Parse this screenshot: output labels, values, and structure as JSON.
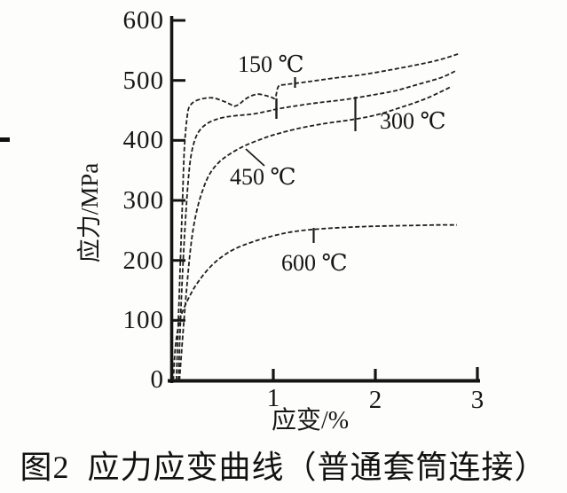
{
  "caption": "图2  应力应变曲线（普通套筒连接）",
  "chart_data": {
    "type": "line",
    "title": "图2 应力应变曲线（普通套筒连接）",
    "xlabel": "应变/%",
    "ylabel": "应力/MPa",
    "xlim": [
      0,
      3
    ],
    "ylim": [
      0,
      600
    ],
    "x_tick_labels": [
      "1",
      "2",
      "3"
    ],
    "y_tick_labels": [
      "600",
      "500",
      "400",
      "300",
      "200",
      "100",
      "0"
    ],
    "grid": false,
    "legend_position": "inline curve labels",
    "line_color": "#1f1f1f",
    "series": [
      {
        "name": "150 ℃",
        "points": [
          [
            0.05,
            0
          ],
          [
            0.08,
            150
          ],
          [
            0.11,
            300
          ],
          [
            0.13,
            390
          ],
          [
            0.16,
            445
          ],
          [
            0.19,
            459
          ],
          [
            0.24,
            466
          ],
          [
            0.32,
            470
          ],
          [
            0.4,
            471
          ],
          [
            0.47,
            468
          ],
          [
            0.53,
            464
          ],
          [
            0.58,
            460
          ],
          [
            0.62,
            457
          ],
          [
            0.67,
            461
          ],
          [
            0.72,
            468
          ],
          [
            0.78,
            474
          ],
          [
            0.85,
            477
          ],
          [
            0.92,
            475
          ],
          [
            0.98,
            472
          ],
          [
            1.02,
            471
          ],
          [
            1.05,
            490
          ],
          [
            1.12,
            493
          ],
          [
            1.35,
            498
          ],
          [
            1.6,
            504
          ],
          [
            1.85,
            509
          ],
          [
            2.1,
            516
          ],
          [
            2.35,
            524
          ],
          [
            2.6,
            533
          ],
          [
            2.83,
            545
          ]
        ]
      },
      {
        "name": "300 ℃",
        "points": [
          [
            0.07,
            0
          ],
          [
            0.1,
            140
          ],
          [
            0.13,
            240
          ],
          [
            0.16,
            320
          ],
          [
            0.19,
            370
          ],
          [
            0.23,
            400
          ],
          [
            0.28,
            417
          ],
          [
            0.36,
            429
          ],
          [
            0.48,
            437
          ],
          [
            0.62,
            441
          ],
          [
            0.8,
            444
          ],
          [
            0.95,
            449
          ],
          [
            1.03,
            452
          ],
          [
            1.2,
            457
          ],
          [
            1.45,
            463
          ],
          [
            1.7,
            468
          ],
          [
            1.95,
            475
          ],
          [
            2.2,
            483
          ],
          [
            2.45,
            495
          ],
          [
            2.65,
            505
          ],
          [
            2.8,
            517
          ]
        ]
      },
      {
        "name": "450 ℃",
        "points": [
          [
            0.08,
            0
          ],
          [
            0.12,
            90
          ],
          [
            0.16,
            170
          ],
          [
            0.2,
            235
          ],
          [
            0.25,
            283
          ],
          [
            0.31,
            318
          ],
          [
            0.38,
            345
          ],
          [
            0.47,
            364
          ],
          [
            0.58,
            378
          ],
          [
            0.72,
            391
          ],
          [
            0.88,
            402
          ],
          [
            1.02,
            410
          ],
          [
            1.25,
            420
          ],
          [
            1.5,
            428
          ],
          [
            1.75,
            434
          ],
          [
            2.0,
            442
          ],
          [
            2.25,
            455
          ],
          [
            2.5,
            470
          ],
          [
            2.75,
            490
          ]
        ]
      },
      {
        "name": "600 ℃",
        "points": [
          [
            0.02,
            0
          ],
          [
            0.04,
            55
          ],
          [
            0.07,
            90
          ],
          [
            0.1,
            110
          ],
          [
            0.15,
            130
          ],
          [
            0.21,
            150
          ],
          [
            0.28,
            168
          ],
          [
            0.37,
            187
          ],
          [
            0.48,
            204
          ],
          [
            0.62,
            219
          ],
          [
            0.8,
            231
          ],
          [
            1.0,
            241
          ],
          [
            1.2,
            248
          ],
          [
            1.42,
            252
          ],
          [
            1.7,
            255
          ],
          [
            2.0,
            257
          ],
          [
            2.3,
            258
          ],
          [
            2.6,
            259
          ],
          [
            2.8,
            259
          ]
        ]
      }
    ]
  }
}
